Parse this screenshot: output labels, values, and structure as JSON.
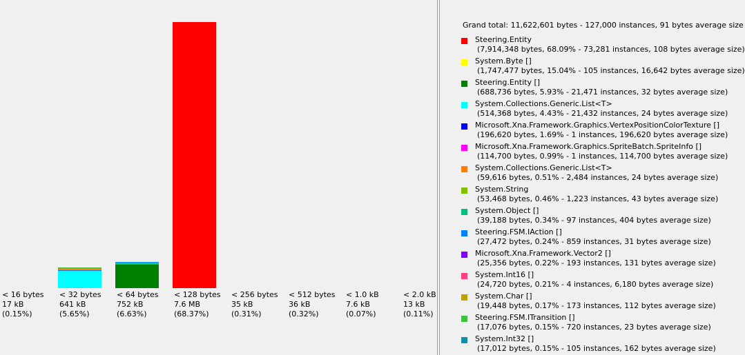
{
  "chart_data": {
    "type": "bar",
    "stacked": true,
    "ylabel": "",
    "xlabel": "",
    "buckets": [
      {
        "label": "< 16 bytes",
        "size": "17 kB",
        "percent": "(0.15%)",
        "segments": []
      },
      {
        "label": "< 32 bytes",
        "size": "641 kB",
        "percent": "(5.65%)",
        "segments": [
          {
            "type": "System.Collections.Generic.List<T>",
            "value": 514368
          },
          {
            "type": "Steering.FSM.IAction []",
            "value": 27472
          },
          {
            "type": "System.Collections.Generic.List<T> (2)",
            "value": 59616
          },
          {
            "type": "Steering.FSM.ITransition []",
            "value": 17076
          }
        ]
      },
      {
        "label": "< 64 bytes",
        "size": "752 kB",
        "percent": "(6.63%)",
        "segments": [
          {
            "type": "Steering.Entity []",
            "value": 688736
          },
          {
            "type": "System.Object []",
            "value": 39188
          },
          {
            "type": "System.String",
            "value": 14000
          },
          {
            "type": "Steering.FSM.IAction []",
            "value": 10000
          }
        ]
      },
      {
        "label": "< 128 bytes",
        "size": "7.6 MB",
        "percent": "(68.37%)",
        "segments": [
          {
            "type": "Steering.Entity",
            "value": 7914348
          }
        ]
      },
      {
        "label": "< 256 bytes",
        "size": "35 kB",
        "percent": "(0.31%)",
        "segments": []
      },
      {
        "label": "< 512 bytes",
        "size": "36 kB",
        "percent": "(0.32%)",
        "segments": []
      },
      {
        "label": "< 1.0 kB",
        "size": "7.6 kB",
        "percent": "(0.07%)",
        "segments": []
      },
      {
        "label": "< 2.0 kB",
        "size": "13 kB",
        "percent": "(0.11%)",
        "segments": []
      }
    ],
    "ymax": 7914348
  },
  "legend": {
    "grand_total": "Grand total: 11,622,601 bytes - 127,000 instances, 91 bytes average size",
    "items": [
      {
        "name": "Steering.Entity",
        "detail": "(7,914,348 bytes, 68.09% - 73,281 instances, 108 bytes average size)",
        "color": "#ff0000"
      },
      {
        "name": "System.Byte []",
        "detail": "(1,747,477 bytes, 15.04% - 105 instances, 16,642 bytes average size)",
        "color": "#ffff00"
      },
      {
        "name": "Steering.Entity []",
        "detail": "(688,736 bytes, 5.93% - 21,471 instances, 32 bytes average size)",
        "color": "#008000"
      },
      {
        "name": "System.Collections.Generic.List<T>",
        "detail": "(514,368 bytes, 4.43% - 21,432 instances, 24 bytes average size)",
        "color": "#00ffff"
      },
      {
        "name": "Microsoft.Xna.Framework.Graphics.VertexPositionColorTexture []",
        "detail": "(196,620 bytes, 1.69% - 1 instances, 196,620 bytes average size)",
        "color": "#0000ff"
      },
      {
        "name": "Microsoft.Xna.Framework.Graphics.SpriteBatch.SpriteInfo []",
        "detail": "(114,700 bytes, 0.99% - 1 instances, 114,700 bytes average size)",
        "color": "#ff00ff"
      },
      {
        "name": "System.Collections.Generic.List<T>",
        "detail": "(59,616 bytes, 0.51% - 2,484 instances, 24 bytes average size)",
        "color": "#ff8000"
      },
      {
        "name": "System.String",
        "detail": "(53,468 bytes, 0.46% - 1,223 instances, 43 bytes average size)",
        "color": "#80c000"
      },
      {
        "name": "System.Object []",
        "detail": "(39,188 bytes, 0.34% - 97 instances, 404 bytes average size)",
        "color": "#00c080"
      },
      {
        "name": "Steering.FSM.IAction []",
        "detail": "(27,472 bytes, 0.24% - 859 instances, 31 bytes average size)",
        "color": "#0080ff"
      },
      {
        "name": "Microsoft.Xna.Framework.Vector2 []",
        "detail": "(25,356 bytes, 0.22% - 193 instances, 131 bytes average size)",
        "color": "#8000ff"
      },
      {
        "name": "System.Int16 []",
        "detail": "(24,720 bytes, 0.21% - 4 instances, 6,180 bytes average size)",
        "color": "#ff4080"
      },
      {
        "name": "System.Char []",
        "detail": "(19,448 bytes, 0.17% - 173 instances, 112 bytes average size)",
        "color": "#c0a000"
      },
      {
        "name": "Steering.FSM.ITransition []",
        "detail": "(17,076 bytes, 0.15% - 720 instances, 23 bytes average size)",
        "color": "#40c040"
      },
      {
        "name": "System.Int32 []",
        "detail": "(17,012 bytes, 0.15% - 105 instances, 162 bytes average size)",
        "color": "#1090a8"
      }
    ]
  }
}
